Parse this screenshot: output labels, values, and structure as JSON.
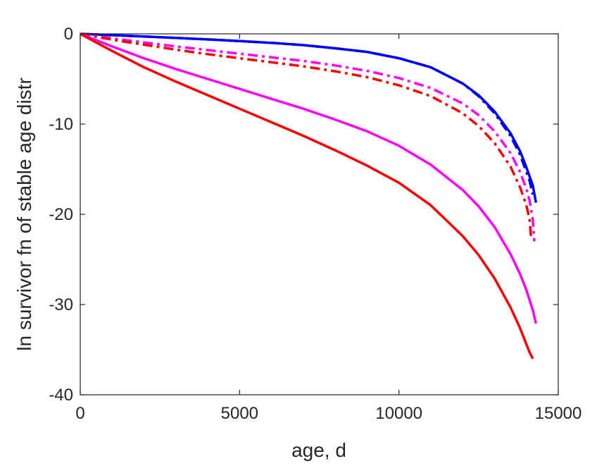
{
  "chart_data": {
    "type": "line",
    "xlabel": "age, d",
    "ylabel": "ln survivor fn of stable age distr",
    "xlim": [
      0,
      15000
    ],
    "ylim": [
      -40,
      0
    ],
    "xticks": [
      "0",
      "5000",
      "10000",
      "15000"
    ],
    "yticks": [
      "0",
      "-10",
      "-20",
      "-30",
      "-40"
    ],
    "grid": false,
    "legend": "none",
    "series": [
      {
        "color": "#0000ff",
        "style": "solid",
        "x": [
          0,
          1000,
          2000,
          3000,
          4000,
          5000,
          6000,
          7000,
          8000,
          9000,
          10000,
          11000,
          12000,
          12500,
          13000,
          13500,
          13800,
          14000,
          14200,
          14300
        ],
        "y": [
          0,
          -0.15,
          -0.3,
          -0.45,
          -0.62,
          -0.8,
          -1.0,
          -1.25,
          -1.6,
          -2.0,
          -2.7,
          -3.7,
          -5.5,
          -6.8,
          -8.6,
          -11.0,
          -13.0,
          -14.8,
          -16.8,
          -18.7
        ]
      },
      {
        "color": "#0000ff",
        "style": "dashdot",
        "x": [
          0,
          1000,
          2000,
          3000,
          4000,
          5000,
          6000,
          7000,
          8000,
          9000,
          10000,
          11000,
          12000,
          12500,
          13000,
          13500,
          13800,
          14000,
          14100,
          14200
        ],
        "y": [
          0,
          -0.15,
          -0.3,
          -0.45,
          -0.62,
          -0.8,
          -1.0,
          -1.25,
          -1.6,
          -2.0,
          -2.7,
          -3.7,
          -5.5,
          -6.9,
          -8.8,
          -11.3,
          -13.4,
          -15.3,
          -16.3,
          -17.8
        ]
      },
      {
        "color": "#ff00ff",
        "style": "dashdot",
        "x": [
          0,
          1000,
          2000,
          3000,
          4000,
          5000,
          6000,
          7000,
          8000,
          9000,
          10000,
          11000,
          12000,
          12500,
          13000,
          13500,
          13800,
          14000,
          14100,
          14200,
          14250
        ],
        "y": [
          0,
          -0.5,
          -0.95,
          -1.4,
          -1.8,
          -2.2,
          -2.6,
          -3.0,
          -3.5,
          -4.1,
          -4.9,
          -6.0,
          -7.7,
          -9.0,
          -10.8,
          -13.2,
          -15.3,
          -17.2,
          -18.5,
          -20.6,
          -23.0
        ]
      },
      {
        "color": "#ff0000",
        "style": "dashdot",
        "x": [
          0,
          1000,
          2000,
          3000,
          4000,
          5000,
          6000,
          7000,
          8000,
          9000,
          10000,
          11000,
          12000,
          12500,
          13000,
          13500,
          13800,
          14000,
          14100,
          14150
        ],
        "y": [
          0,
          -0.65,
          -1.2,
          -1.75,
          -2.25,
          -2.7,
          -3.15,
          -3.6,
          -4.15,
          -4.8,
          -5.7,
          -6.9,
          -8.8,
          -10.2,
          -12.1,
          -14.7,
          -17.0,
          -19.0,
          -20.6,
          -22.7
        ]
      },
      {
        "color": "#ff00ff",
        "style": "solid",
        "x": [
          0,
          1000,
          2000,
          3000,
          4000,
          5000,
          6000,
          7000,
          8000,
          9000,
          10000,
          11000,
          12000,
          12500,
          13000,
          13500,
          13800,
          14000,
          14200,
          14300
        ],
        "y": [
          0,
          -1.4,
          -2.7,
          -3.9,
          -5.0,
          -6.1,
          -7.2,
          -8.3,
          -9.5,
          -10.8,
          -12.4,
          -14.5,
          -17.3,
          -19.1,
          -21.4,
          -24.4,
          -26.6,
          -28.4,
          -30.6,
          -32.1
        ]
      },
      {
        "color": "#ff0000",
        "style": "solid",
        "x": [
          0,
          1000,
          2000,
          3000,
          4000,
          5000,
          6000,
          7000,
          8000,
          9000,
          10000,
          11000,
          12000,
          12500,
          13000,
          13500,
          13800,
          14000,
          14100,
          14200
        ],
        "y": [
          0,
          -1.9,
          -3.7,
          -5.3,
          -6.8,
          -8.3,
          -9.8,
          -11.3,
          -12.9,
          -14.6,
          -16.5,
          -19.0,
          -22.4,
          -24.5,
          -27.1,
          -30.3,
          -32.6,
          -34.4,
          -35.3,
          -36.0
        ]
      }
    ]
  }
}
